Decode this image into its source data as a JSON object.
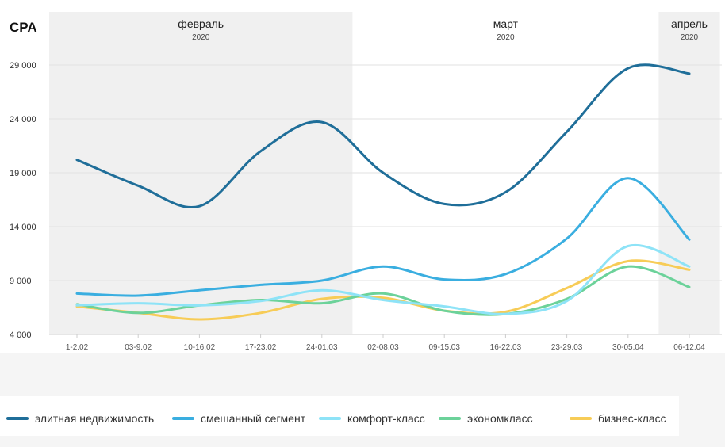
{
  "chart_data": {
    "type": "line",
    "title": "CPA",
    "categories": [
      "1-2.02",
      "03-9.02",
      "10-16.02",
      "17-23.02",
      "24-01.03",
      "02-08.03",
      "09-15.03",
      "16-22.03",
      "23-29.03",
      "30-05.04",
      "06-12.04"
    ],
    "ylim": [
      4000,
      29000
    ],
    "yticks": [
      4000,
      9000,
      14000,
      19000,
      24000,
      29000
    ],
    "ytick_labels": [
      "4 000",
      "9 000",
      "14 000",
      "19 000",
      "24 000",
      "29 000"
    ],
    "grid": true,
    "legend_position": "bottom",
    "periods": [
      {
        "month": "февраль",
        "year": "2020",
        "shaded": true,
        "from": 0,
        "to": 4.5
      },
      {
        "month": "март",
        "year": "2020",
        "shaded": false,
        "from": 4.5,
        "to": 9.5
      },
      {
        "month": "апрель",
        "year": "2020",
        "shaded": true,
        "from": 9.5,
        "to": 10.5
      }
    ],
    "series": [
      {
        "name": "элитная недвижимость",
        "color": "#1f6e99",
        "values": [
          20200,
          17800,
          15900,
          21000,
          23700,
          19000,
          16100,
          17200,
          22800,
          28700,
          28200
        ]
      },
      {
        "name": "смешанный сегмент",
        "color": "#3aaee0",
        "values": [
          7800,
          7600,
          8100,
          8600,
          9000,
          10300,
          9100,
          9600,
          12900,
          18500,
          12800
        ]
      },
      {
        "name": "комфорт-класс",
        "color": "#8ee3f7",
        "values": [
          6700,
          6900,
          6700,
          7100,
          8100,
          7200,
          6600,
          5900,
          7100,
          12200,
          10300
        ]
      },
      {
        "name": "экономкласс",
        "color": "#6cd29a",
        "values": [
          6800,
          6000,
          6700,
          7200,
          6900,
          7800,
          6200,
          5900,
          7300,
          10300,
          8400
        ]
      },
      {
        "name": "бизнес-класс",
        "color": "#f7cc57",
        "values": [
          6600,
          6000,
          5400,
          6000,
          7300,
          7400,
          6200,
          6100,
          8300,
          10800,
          10000
        ]
      }
    ]
  },
  "legend": {
    "items": [
      "элитная недвижимость",
      "смешанный сегмент",
      "комфорт-класс",
      "экономкласс",
      "бизнес-класс"
    ]
  }
}
